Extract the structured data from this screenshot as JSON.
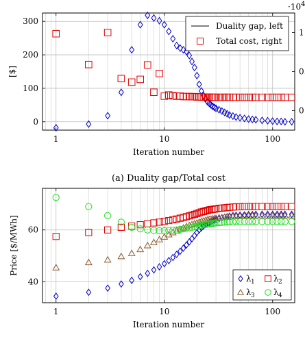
{
  "chart_data": [
    {
      "type": "scatter",
      "xscale": "log",
      "xlim": [
        0.75,
        160
      ],
      "ylim": [
        -25,
        325
      ],
      "ylim_right": [
        -0.25,
        1.25
      ],
      "grid": true,
      "xlabel": "Iteration number",
      "ylabel": "[$]",
      "right_scale_label": "·10^4",
      "right_scale_parts": {
        "base": "·10",
        "exp": "4"
      },
      "x_ticks": [
        1,
        10,
        100
      ],
      "x_tick_labels": [
        "1",
        "10",
        "100"
      ],
      "y_ticks": [
        0,
        100,
        200,
        300
      ],
      "y_tick_labels": [
        "0",
        "100",
        "200",
        "300"
      ],
      "y_right_ticks": [
        0,
        0.5,
        1
      ],
      "y_right_tick_labels": [
        "0",
        "0.5",
        "1"
      ],
      "caption": "(a) Duality gap/Total cost",
      "legend_position": "top-right",
      "legend": [
        {
          "label": "Duality gap, left",
          "marker": "line",
          "color": "#000000"
        },
        {
          "label": "Total cost, right",
          "marker": "square",
          "color": "#e00000"
        }
      ],
      "series": [
        {
          "name": "Duality gap, left",
          "axis": "left",
          "marker": "diamond",
          "color": "#0000cc",
          "x": [
            1,
            2,
            3,
            4,
            5,
            6,
            7,
            8,
            9,
            10,
            11,
            12,
            13,
            14,
            15,
            16,
            17,
            18,
            19,
            20,
            21,
            22,
            23,
            24,
            25,
            26,
            27,
            28,
            29,
            30,
            32,
            34,
            36,
            38,
            40,
            43,
            46,
            50,
            55,
            60,
            65,
            70,
            80,
            90,
            100,
            110,
            120,
            130,
            150
          ],
          "y": [
            -18,
            -7,
            18,
            88,
            215,
            290,
            318,
            310,
            302,
            290,
            270,
            248,
            228,
            220,
            215,
            210,
            198,
            180,
            162,
            138,
            112,
            92,
            78,
            68,
            60,
            55,
            50,
            46,
            43,
            40,
            36,
            32,
            28,
            24,
            20,
            17,
            14,
            12,
            10,
            8,
            7,
            6,
            4,
            3,
            2,
            1,
            1,
            0,
            0
          ]
        },
        {
          "name": "Total cost, right",
          "axis": "right",
          "marker": "square",
          "color": "#e00000",
          "x": [
            1,
            2,
            3,
            4,
            5,
            6,
            7,
            8,
            9,
            10,
            11,
            12,
            13,
            14,
            15,
            16,
            17,
            18,
            19,
            20,
            21,
            22,
            23,
            24,
            25,
            26,
            27,
            28,
            29,
            30,
            32,
            34,
            36,
            38,
            40,
            43,
            46,
            50,
            55,
            60,
            65,
            70,
            80,
            90,
            100,
            110,
            120,
            130,
            150
          ],
          "y": [
            0.985,
            0.59,
            1.0,
            0.41,
            0.365,
            0.4,
            0.585,
            0.235,
            0.475,
            0.185,
            0.2,
            0.19,
            0.185,
            0.185,
            0.18,
            0.18,
            0.18,
            0.178,
            0.178,
            0.175,
            0.175,
            0.175,
            0.172,
            0.172,
            0.172,
            0.172,
            0.17,
            0.17,
            0.17,
            0.17,
            0.17,
            0.17,
            0.17,
            0.17,
            0.17,
            0.17,
            0.17,
            0.17,
            0.17,
            0.17,
            0.17,
            0.17,
            0.17,
            0.17,
            0.17,
            0.17,
            0.17,
            0.17,
            0.17
          ]
        }
      ]
    },
    {
      "type": "scatter",
      "xscale": "log",
      "xlim": [
        0.75,
        160
      ],
      "ylim": [
        32,
        76
      ],
      "grid": true,
      "xlabel": "Iteration number",
      "ylabel": "Price [$/MWh]",
      "x_ticks": [
        1,
        10,
        100
      ],
      "x_tick_labels": [
        "1",
        "10",
        "100"
      ],
      "y_ticks": [
        40,
        60
      ],
      "y_tick_labels": [
        "40",
        "60"
      ],
      "legend_position": "bottom-right",
      "legend": [
        {
          "label": "λ",
          "sub": "1",
          "marker": "diamond",
          "color": "#0000cc"
        },
        {
          "label": "λ",
          "sub": "2",
          "marker": "square",
          "color": "#e00000"
        },
        {
          "label": "λ",
          "sub": "3",
          "marker": "triangle",
          "color": "#8b5a2b"
        },
        {
          "label": "λ",
          "sub": "4",
          "marker": "circle",
          "color": "#22dd22"
        }
      ],
      "series": [
        {
          "name": "λ1",
          "marker": "diamond",
          "color": "#0000cc",
          "x": [
            1,
            2,
            3,
            4,
            5,
            6,
            7,
            8,
            9,
            10,
            11,
            12,
            13,
            14,
            15,
            16,
            17,
            18,
            19,
            20,
            21,
            22,
            23,
            24,
            25,
            26,
            27,
            28,
            29,
            30,
            32,
            34,
            36,
            38,
            40,
            43,
            46,
            50,
            55,
            60,
            65,
            70,
            80,
            90,
            100,
            110,
            120,
            130,
            150
          ],
          "y": [
            34.5,
            36,
            37.6,
            39.2,
            40.6,
            42,
            43.3,
            44.6,
            45.8,
            47,
            48.2,
            49.4,
            50.6,
            51.8,
            53,
            54.2,
            55.4,
            56.6,
            57.8,
            59,
            60,
            60.8,
            61.5,
            62,
            62.5,
            62.9,
            63.2,
            63.5,
            63.7,
            63.9,
            64.3,
            64.6,
            64.9,
            65.1,
            65.3,
            65.5,
            65.6,
            65.7,
            65.8,
            65.9,
            65.9,
            66,
            66,
            66,
            66,
            66,
            66,
            66,
            66
          ]
        },
        {
          "name": "λ2",
          "marker": "square",
          "color": "#e00000",
          "x": [
            1,
            2,
            3,
            4,
            5,
            6,
            7,
            8,
            9,
            10,
            11,
            12,
            13,
            14,
            15,
            16,
            17,
            18,
            19,
            20,
            21,
            22,
            23,
            24,
            25,
            26,
            27,
            28,
            29,
            30,
            32,
            34,
            36,
            38,
            40,
            43,
            46,
            50,
            55,
            60,
            65,
            70,
            80,
            90,
            100,
            110,
            120,
            130,
            150
          ],
          "y": [
            57.5,
            59,
            60,
            61,
            61.5,
            62,
            62.4,
            62.7,
            63,
            63.3,
            63.6,
            63.9,
            64.2,
            64.5,
            64.8,
            65.1,
            65.4,
            65.7,
            66,
            66.3,
            66.6,
            66.9,
            67.1,
            67.3,
            67.5,
            67.7,
            67.8,
            67.9,
            68,
            68.1,
            68.3,
            68.4,
            68.5,
            68.6,
            68.7,
            68.8,
            68.9,
            68.9,
            69,
            69,
            69,
            69,
            69,
            69,
            69,
            69,
            69,
            69,
            69
          ]
        },
        {
          "name": "λ3",
          "marker": "triangle",
          "color": "#8b5a2b",
          "x": [
            1,
            2,
            3,
            4,
            5,
            6,
            7,
            8,
            9,
            10,
            11,
            12,
            13,
            14,
            15,
            16,
            17,
            18,
            19,
            20,
            21,
            22,
            23,
            24,
            25,
            26,
            27,
            28,
            29,
            30,
            32,
            34,
            36,
            38,
            40,
            43,
            46,
            50,
            55,
            60,
            65,
            70,
            80,
            90,
            100,
            110,
            120,
            130,
            150
          ],
          "y": [
            45.5,
            47.5,
            48.5,
            49.8,
            51,
            52.5,
            54,
            55.2,
            56.3,
            57.3,
            58.2,
            59,
            59.7,
            60.3,
            60.8,
            61.3,
            61.7,
            62.1,
            62.4,
            62.7,
            63,
            63.3,
            63.5,
            63.7,
            63.9,
            64.1,
            64.2,
            64.3,
            64.4,
            64.5,
            64.7,
            64.8,
            64.9,
            65,
            65.1,
            65.2,
            65.3,
            65.4,
            65.4,
            65.5,
            65.5,
            65.5,
            65.5,
            65.5,
            65.5,
            65.5,
            65.5,
            65.5,
            65.5
          ]
        },
        {
          "name": "λ4",
          "marker": "circle",
          "color": "#22dd22",
          "x": [
            1,
            2,
            3,
            4,
            5,
            6,
            7,
            8,
            9,
            10,
            11,
            12,
            13,
            14,
            15,
            16,
            17,
            18,
            19,
            20,
            21,
            22,
            23,
            24,
            25,
            26,
            27,
            28,
            29,
            30,
            32,
            34,
            36,
            38,
            40,
            43,
            46,
            50,
            55,
            60,
            65,
            70,
            80,
            90,
            100,
            110,
            120,
            130,
            150
          ],
          "y": [
            72.5,
            69,
            65.5,
            63,
            61,
            60.4,
            60,
            59.8,
            59.7,
            59.7,
            59.8,
            59.9,
            60,
            60.2,
            60.4,
            60.6,
            60.8,
            61,
            61.2,
            61.4,
            61.6,
            61.8,
            62,
            62.1,
            62.2,
            62.3,
            62.4,
            62.5,
            62.6,
            62.7,
            62.8,
            62.9,
            63,
            63,
            63.1,
            63.1,
            63.2,
            63.2,
            63.2,
            63.2,
            63.2,
            63.2,
            63.2,
            63.2,
            63.2,
            63.2,
            63.2,
            63.2,
            63.2
          ]
        }
      ]
    }
  ]
}
